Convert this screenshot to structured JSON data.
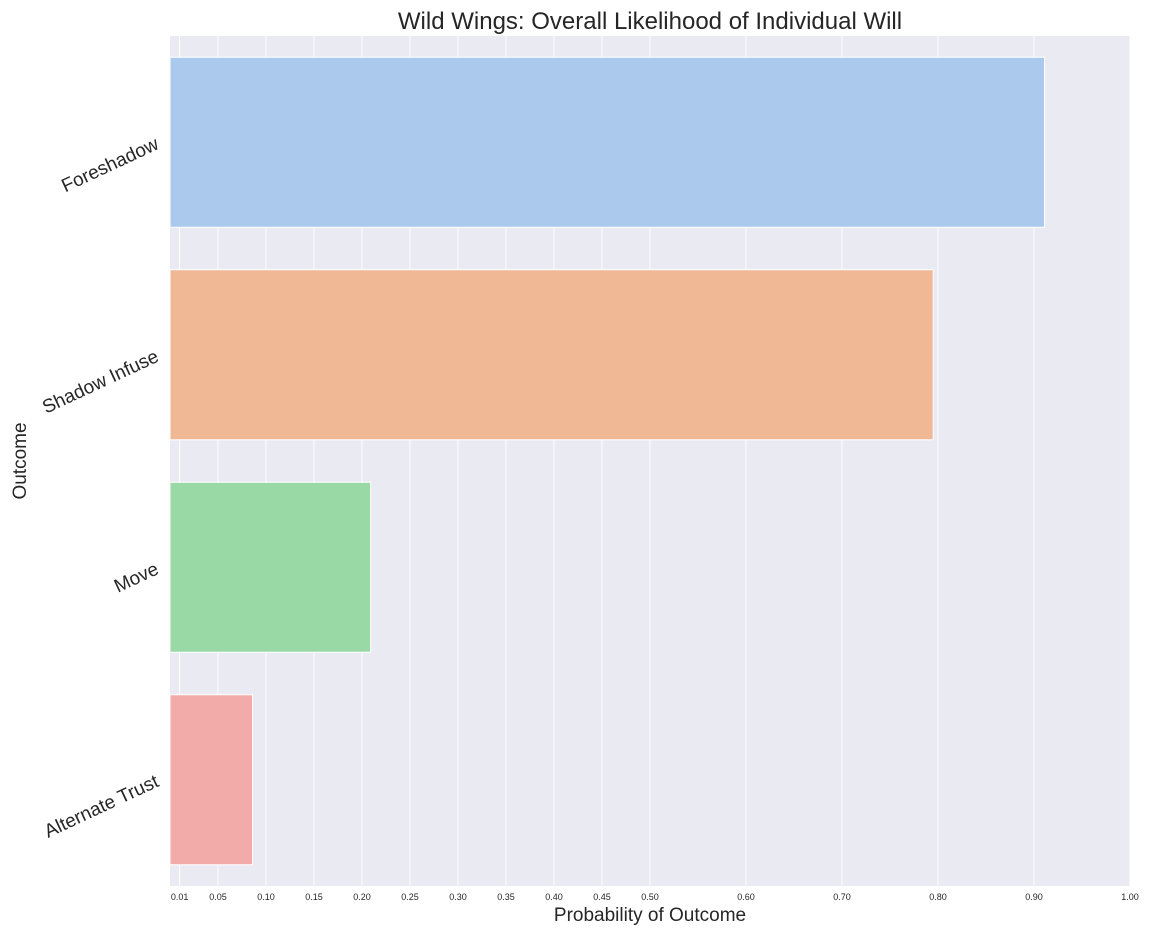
{
  "chart_data": {
    "type": "bar",
    "orientation": "horizontal",
    "title": "Wild Wings: Overall Likelihood of Individual Will",
    "xlabel": "Probability of Outcome",
    "ylabel": "Outcome",
    "categories": [
      "Foreshadow",
      "Shadow Infuse",
      "Move",
      "Alternate Trust"
    ],
    "values": [
      0.911,
      0.795,
      0.209,
      0.086
    ],
    "colors": [
      "#abc9ec",
      "#f0b894",
      "#99d9a6",
      "#f2aba9"
    ],
    "xlim": [
      0.0,
      1.0
    ],
    "xticks": [
      0.01,
      0.05,
      0.1,
      0.15,
      0.2,
      0.25,
      0.3,
      0.35,
      0.4,
      0.45,
      0.5,
      0.6,
      0.7,
      0.8,
      0.9,
      1.0
    ],
    "xtick_labels": [
      "0.01",
      "0.05",
      "0.10",
      "0.15",
      "0.20",
      "0.25",
      "0.30",
      "0.35",
      "0.40",
      "0.45",
      "0.50",
      "0.60",
      "0.70",
      "0.80",
      "0.90",
      "1.00"
    ],
    "grid": true,
    "background": "#eaeaf2",
    "gridline_color": "#ffffff"
  }
}
